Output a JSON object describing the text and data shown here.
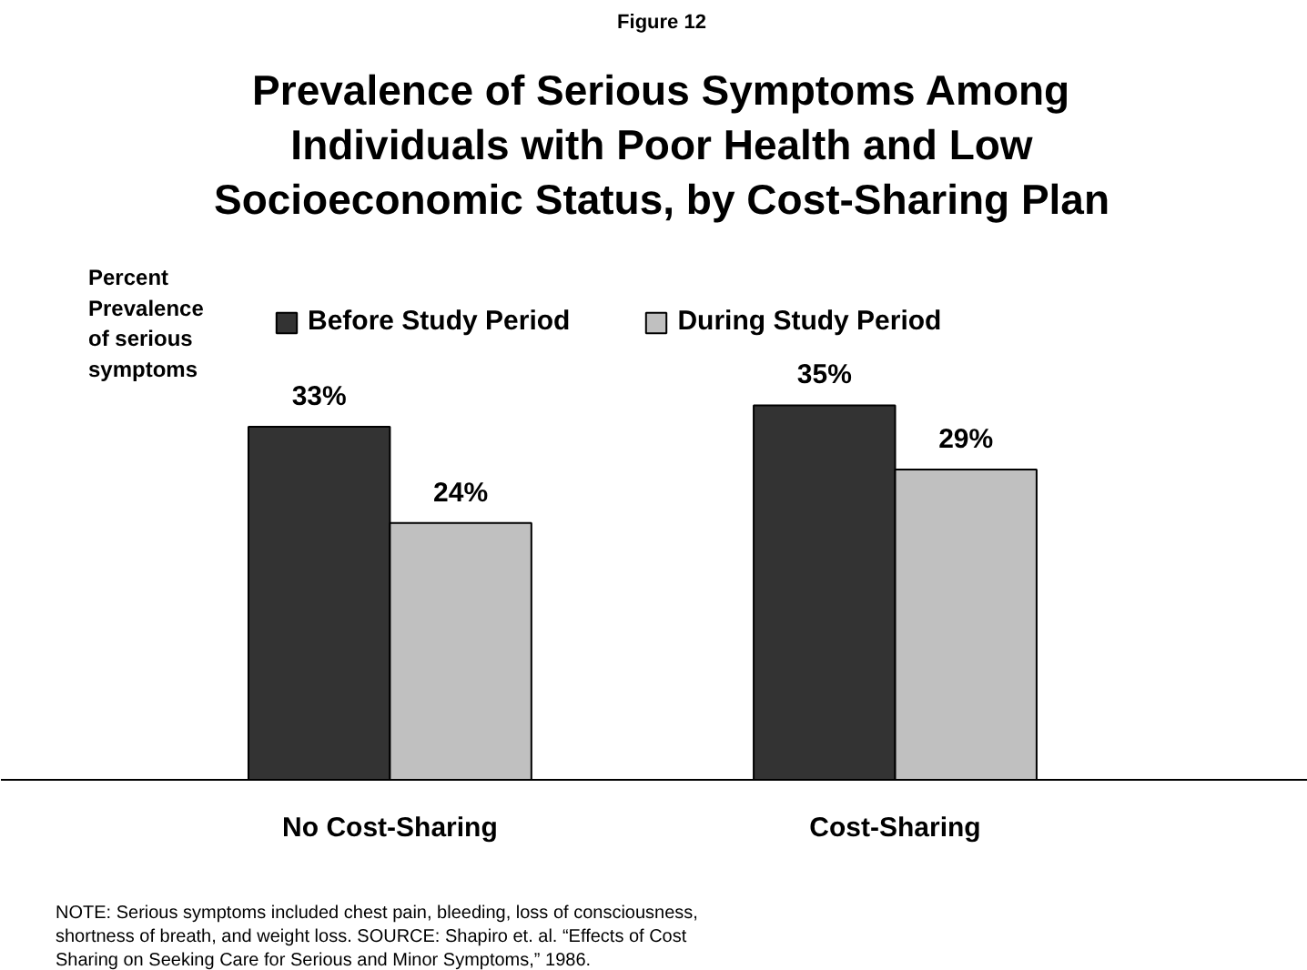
{
  "chart_data": {
    "type": "bar",
    "title": "Prevalence of Serious Symptoms Among Individuals with Poor Health and Low Socioeconomic Status, by Cost-Sharing Plan",
    "subtitle": "Figure 12",
    "ylabel": "Percent Prevalence of serious symptoms",
    "categories": [
      "No Cost-Sharing",
      "Cost-Sharing"
    ],
    "series": [
      {
        "name": "Before Study Period",
        "color": "#333333",
        "values": [
          33,
          35
        ],
        "value_labels": [
          "33%",
          "35%"
        ]
      },
      {
        "name": "During Study Period",
        "color": "#c0c0c0",
        "values": [
          24,
          29
        ],
        "value_labels": [
          "24%",
          "29%"
        ]
      }
    ],
    "tick_labels": "x",
    "legend": "top",
    "grid": false,
    "annotations": [
      "NOTE: Serious symptoms included chest pain, bleeding, loss of consciousness, shortness of breath, and weight loss. SOURCE: Shapiro et. al. “Effects of Cost Sharing on Seeking Care for Serious and Minor Symptoms,” 1986."
    ]
  }
}
